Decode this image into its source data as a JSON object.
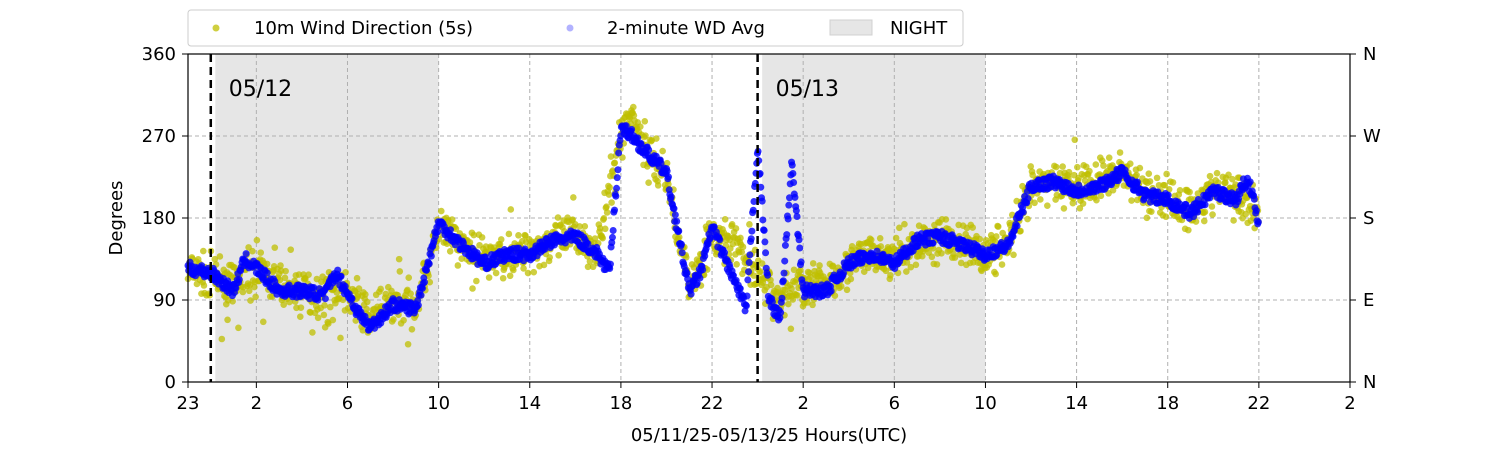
{
  "chart_data": {
    "type": "scatter",
    "xlabel": "05/11/25-05/13/25  Hours(UTC)",
    "ylabel": "Degrees",
    "x_range_hours": [
      0,
      51
    ],
    "x_start": "2025-05-11 23:00 UTC",
    "ylim": [
      0,
      360
    ],
    "yticks": [
      0,
      90,
      180,
      270,
      360
    ],
    "y2_ticks": [
      {
        "value": 0,
        "label": "N"
      },
      {
        "value": 90,
        "label": "E"
      },
      {
        "value": 180,
        "label": "S"
      },
      {
        "value": 270,
        "label": "W"
      },
      {
        "value": 360,
        "label": "N"
      }
    ],
    "xticks": [
      {
        "hour": 0,
        "label": "23"
      },
      {
        "hour": 3,
        "label": "2"
      },
      {
        "hour": 7,
        "label": "6"
      },
      {
        "hour": 11,
        "label": "10"
      },
      {
        "hour": 15,
        "label": "14"
      },
      {
        "hour": 19,
        "label": "18"
      },
      {
        "hour": 23,
        "label": "22"
      },
      {
        "hour": 27,
        "label": "2"
      },
      {
        "hour": 31,
        "label": "6"
      },
      {
        "hour": 35,
        "label": "10"
      },
      {
        "hour": 39,
        "label": "14"
      },
      {
        "hour": 43,
        "label": "18"
      },
      {
        "hour": 47,
        "label": "22"
      },
      {
        "hour": 51,
        "label": "2"
      }
    ],
    "grid": true,
    "legend_position": "top",
    "legend": [
      {
        "label": "10m Wind Direction (5s)",
        "color": "#bfbf00",
        "kind": "marker"
      },
      {
        "label": "2-minute WD Avg",
        "color": "#0000ff",
        "kind": "marker"
      },
      {
        "label": "NIGHT",
        "color": "#e6e6e6",
        "kind": "patch"
      }
    ],
    "night_periods_hours": [
      [
        1.2,
        11.0
      ],
      [
        25.2,
        35.0
      ]
    ],
    "day_markers": [
      {
        "hour": 1.0,
        "label": "05/12"
      },
      {
        "hour": 25.0,
        "label": "05/13"
      }
    ],
    "series": [
      {
        "name": "2-minute WD Avg",
        "color": "#0000ff",
        "x": [
          0,
          1,
          2,
          2.5,
          3,
          4,
          5,
          6,
          6.5,
          7.5,
          8,
          9,
          10,
          11,
          12,
          13,
          14,
          15,
          16,
          17,
          18,
          18.5,
          19,
          19.5,
          20,
          21,
          22,
          22.5,
          23,
          24,
          24.5,
          25,
          25.5,
          26,
          26.5,
          27,
          28,
          29,
          30,
          31,
          32,
          33,
          34,
          35,
          36,
          37,
          38,
          39,
          40,
          41,
          42,
          43,
          44,
          45,
          46,
          46.5,
          47
        ],
        "y": [
          125,
          120,
          100,
          135,
          125,
          100,
          100,
          95,
          120,
          75,
          60,
          85,
          80,
          175,
          150,
          130,
          140,
          140,
          155,
          160,
          140,
          120,
          280,
          270,
          255,
          230,
          100,
          120,
          170,
          110,
          80,
          260,
          90,
          70,
          240,
          100,
          100,
          130,
          140,
          130,
          155,
          160,
          150,
          140,
          150,
          215,
          220,
          210,
          215,
          230,
          205,
          200,
          185,
          210,
          200,
          225,
          175
        ]
      },
      {
        "name": "10m Wind Direction (5s)",
        "color": "#bfbf00",
        "x": [
          0,
          1,
          2,
          3,
          4,
          5,
          6,
          7,
          8,
          9,
          10,
          11,
          12,
          13,
          14,
          15,
          16,
          17,
          18,
          19,
          19.5,
          20,
          21,
          22,
          23,
          24,
          25,
          26,
          27,
          28,
          29,
          30,
          31,
          32,
          33,
          34,
          35,
          36,
          37,
          38,
          39,
          40,
          41,
          42,
          43,
          44,
          45,
          46,
          47
        ],
        "y": [
          120,
          115,
          105,
          125,
          105,
          100,
          95,
          100,
          70,
          90,
          85,
          170,
          150,
          135,
          140,
          145,
          155,
          160,
          145,
          270,
          295,
          260,
          225,
          105,
          160,
          150,
          120,
          90,
          110,
          110,
          130,
          140,
          135,
          150,
          160,
          150,
          140,
          150,
          210,
          220,
          215,
          220,
          230,
          210,
          200,
          190,
          210,
          205,
          190
        ],
        "spread": 35
      }
    ]
  }
}
